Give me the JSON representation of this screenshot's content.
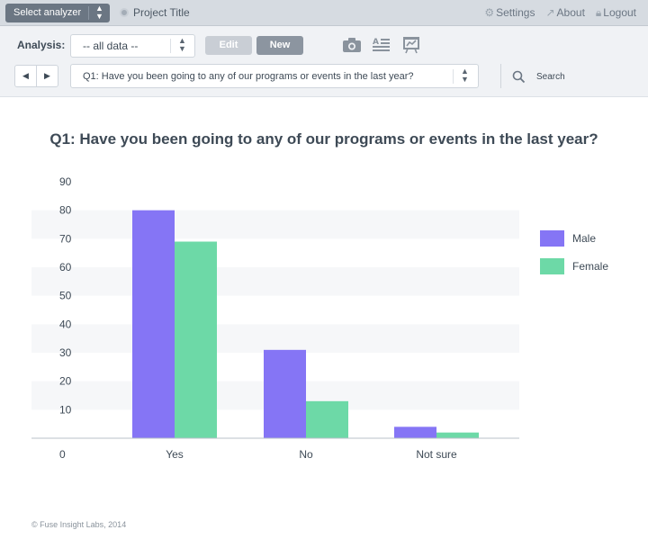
{
  "topbar": {
    "analyzer_label": "Select analyzer",
    "project_title": "Project Title",
    "links": [
      {
        "label": "Settings",
        "icon": "gear-icon"
      },
      {
        "label": "About",
        "icon": "chart-line-icon"
      },
      {
        "label": "Logout",
        "icon": "lock-icon"
      }
    ]
  },
  "toolbar": {
    "analysis_label": "Analysis:",
    "data_select_value": "-- all data --",
    "edit_label": "Edit",
    "new_label": "New",
    "tools": [
      "camera-icon",
      "text-report-icon",
      "presentation-icon"
    ],
    "question_select_value": "Q1: Have you been going to any of our programs or events in the last year?",
    "search_label": "Search"
  },
  "chart_data": {
    "type": "bar",
    "title": "Q1: Have you been going to any of our programs or events in the last year?",
    "categories": [
      "Yes",
      "No",
      "Not sure"
    ],
    "series": [
      {
        "name": "Male",
        "values": [
          80,
          31,
          4
        ],
        "color": "#8575f5"
      },
      {
        "name": "Female",
        "values": [
          69,
          13,
          2
        ],
        "color": "#6dd9a7"
      }
    ],
    "yticks": [
      0,
      10,
      20,
      30,
      40,
      50,
      60,
      70,
      80,
      90
    ],
    "ylim": [
      0,
      90
    ],
    "grid": true,
    "legend": "right"
  },
  "footer": "© Fuse Insight Labs, 2014"
}
